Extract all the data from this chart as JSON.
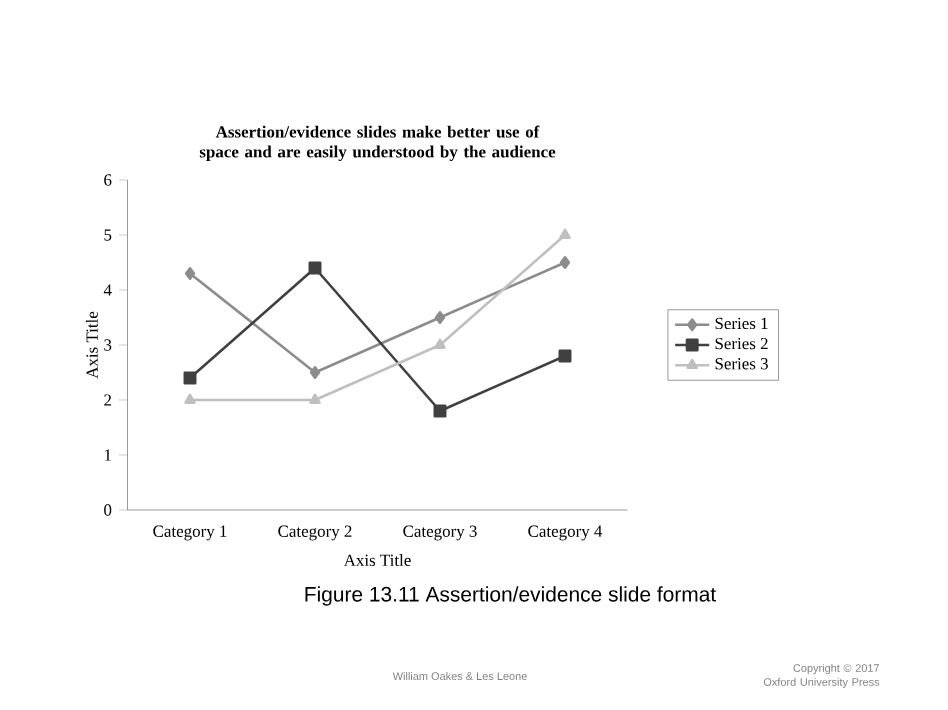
{
  "chart_data": {
    "type": "line",
    "title": "Assertion/evidence slides make better use of space and are easily understood by the audience",
    "xlabel": "Axis Title",
    "ylabel": "Axis Title",
    "categories": [
      "Category 1",
      "Category 2",
      "Category 3",
      "Category 4"
    ],
    "series": [
      {
        "name": "Series 1",
        "color": "#8c8c8c",
        "marker": "diamond",
        "values": [
          4.3,
          2.5,
          3.5,
          4.5
        ]
      },
      {
        "name": "Series 2",
        "color": "#404040",
        "marker": "square",
        "values": [
          2.4,
          4.4,
          1.8,
          2.8
        ]
      },
      {
        "name": "Series 3",
        "color": "#bfbfbf",
        "marker": "triangle",
        "values": [
          2,
          2,
          3,
          5
        ]
      }
    ],
    "ylim": [
      0,
      6
    ],
    "yticks": [
      0,
      1,
      2,
      3,
      4,
      5,
      6
    ],
    "grid": false,
    "legend": "right",
    "line_style": "solid",
    "annotations": [
      "Figure 13.11 Assertion/evidence slide format",
      "William Oakes & Les Leone",
      "Copyright © 2017 Oxford University Press"
    ]
  }
}
